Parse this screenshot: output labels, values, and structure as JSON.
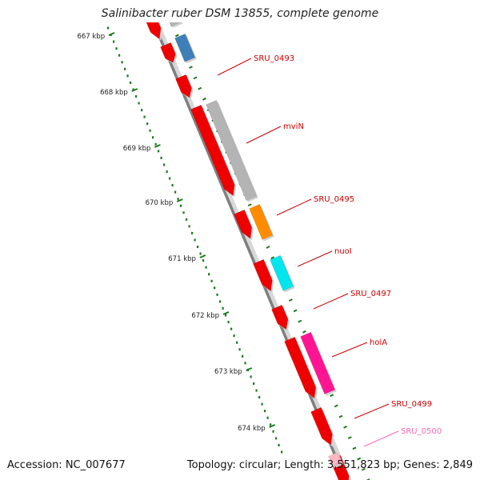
{
  "header": {
    "title": "Salinibacter ruber DSM 13855, complete genome"
  },
  "footer": {
    "accession": "Accession: NC_007677",
    "summary": "Topology: circular; Length: 3,551,823 bp; Genes: 2,849"
  },
  "map": {
    "ruler_color": "#1a7a1a",
    "backbone_color": "#808080",
    "ruler_labels": [
      "667 kbp",
      "668 kbp",
      "669 kbp",
      "670 kbp",
      "671 kbp",
      "672 kbp",
      "673 kbp",
      "674 kbp"
    ],
    "features": [
      {
        "label": "SRU_0493",
        "color": "#3f7fb8",
        "label_color": "#cc0000"
      },
      {
        "label": "mviN",
        "color": "#b4b4b4",
        "label_color": "#cc0000"
      },
      {
        "label": "SRU_0495",
        "color": "#ff8c00",
        "label_color": "#cc0000"
      },
      {
        "label": "nuoI",
        "color": "#00e5ee",
        "label_color": "#cc0000"
      },
      {
        "label": "SRU_0497",
        "color": "#ee0000",
        "label_color": "#cc0000"
      },
      {
        "label": "holA",
        "color": "#ff1493",
        "label_color": "#cc0000"
      },
      {
        "label": "SRU_0499",
        "color": "#ee0000",
        "label_color": "#cc0000"
      },
      {
        "label": "SRU_0500",
        "color": "#ffb6c1",
        "label_color": "#ff69b4"
      }
    ],
    "red_gene_color": "#ee0000"
  }
}
